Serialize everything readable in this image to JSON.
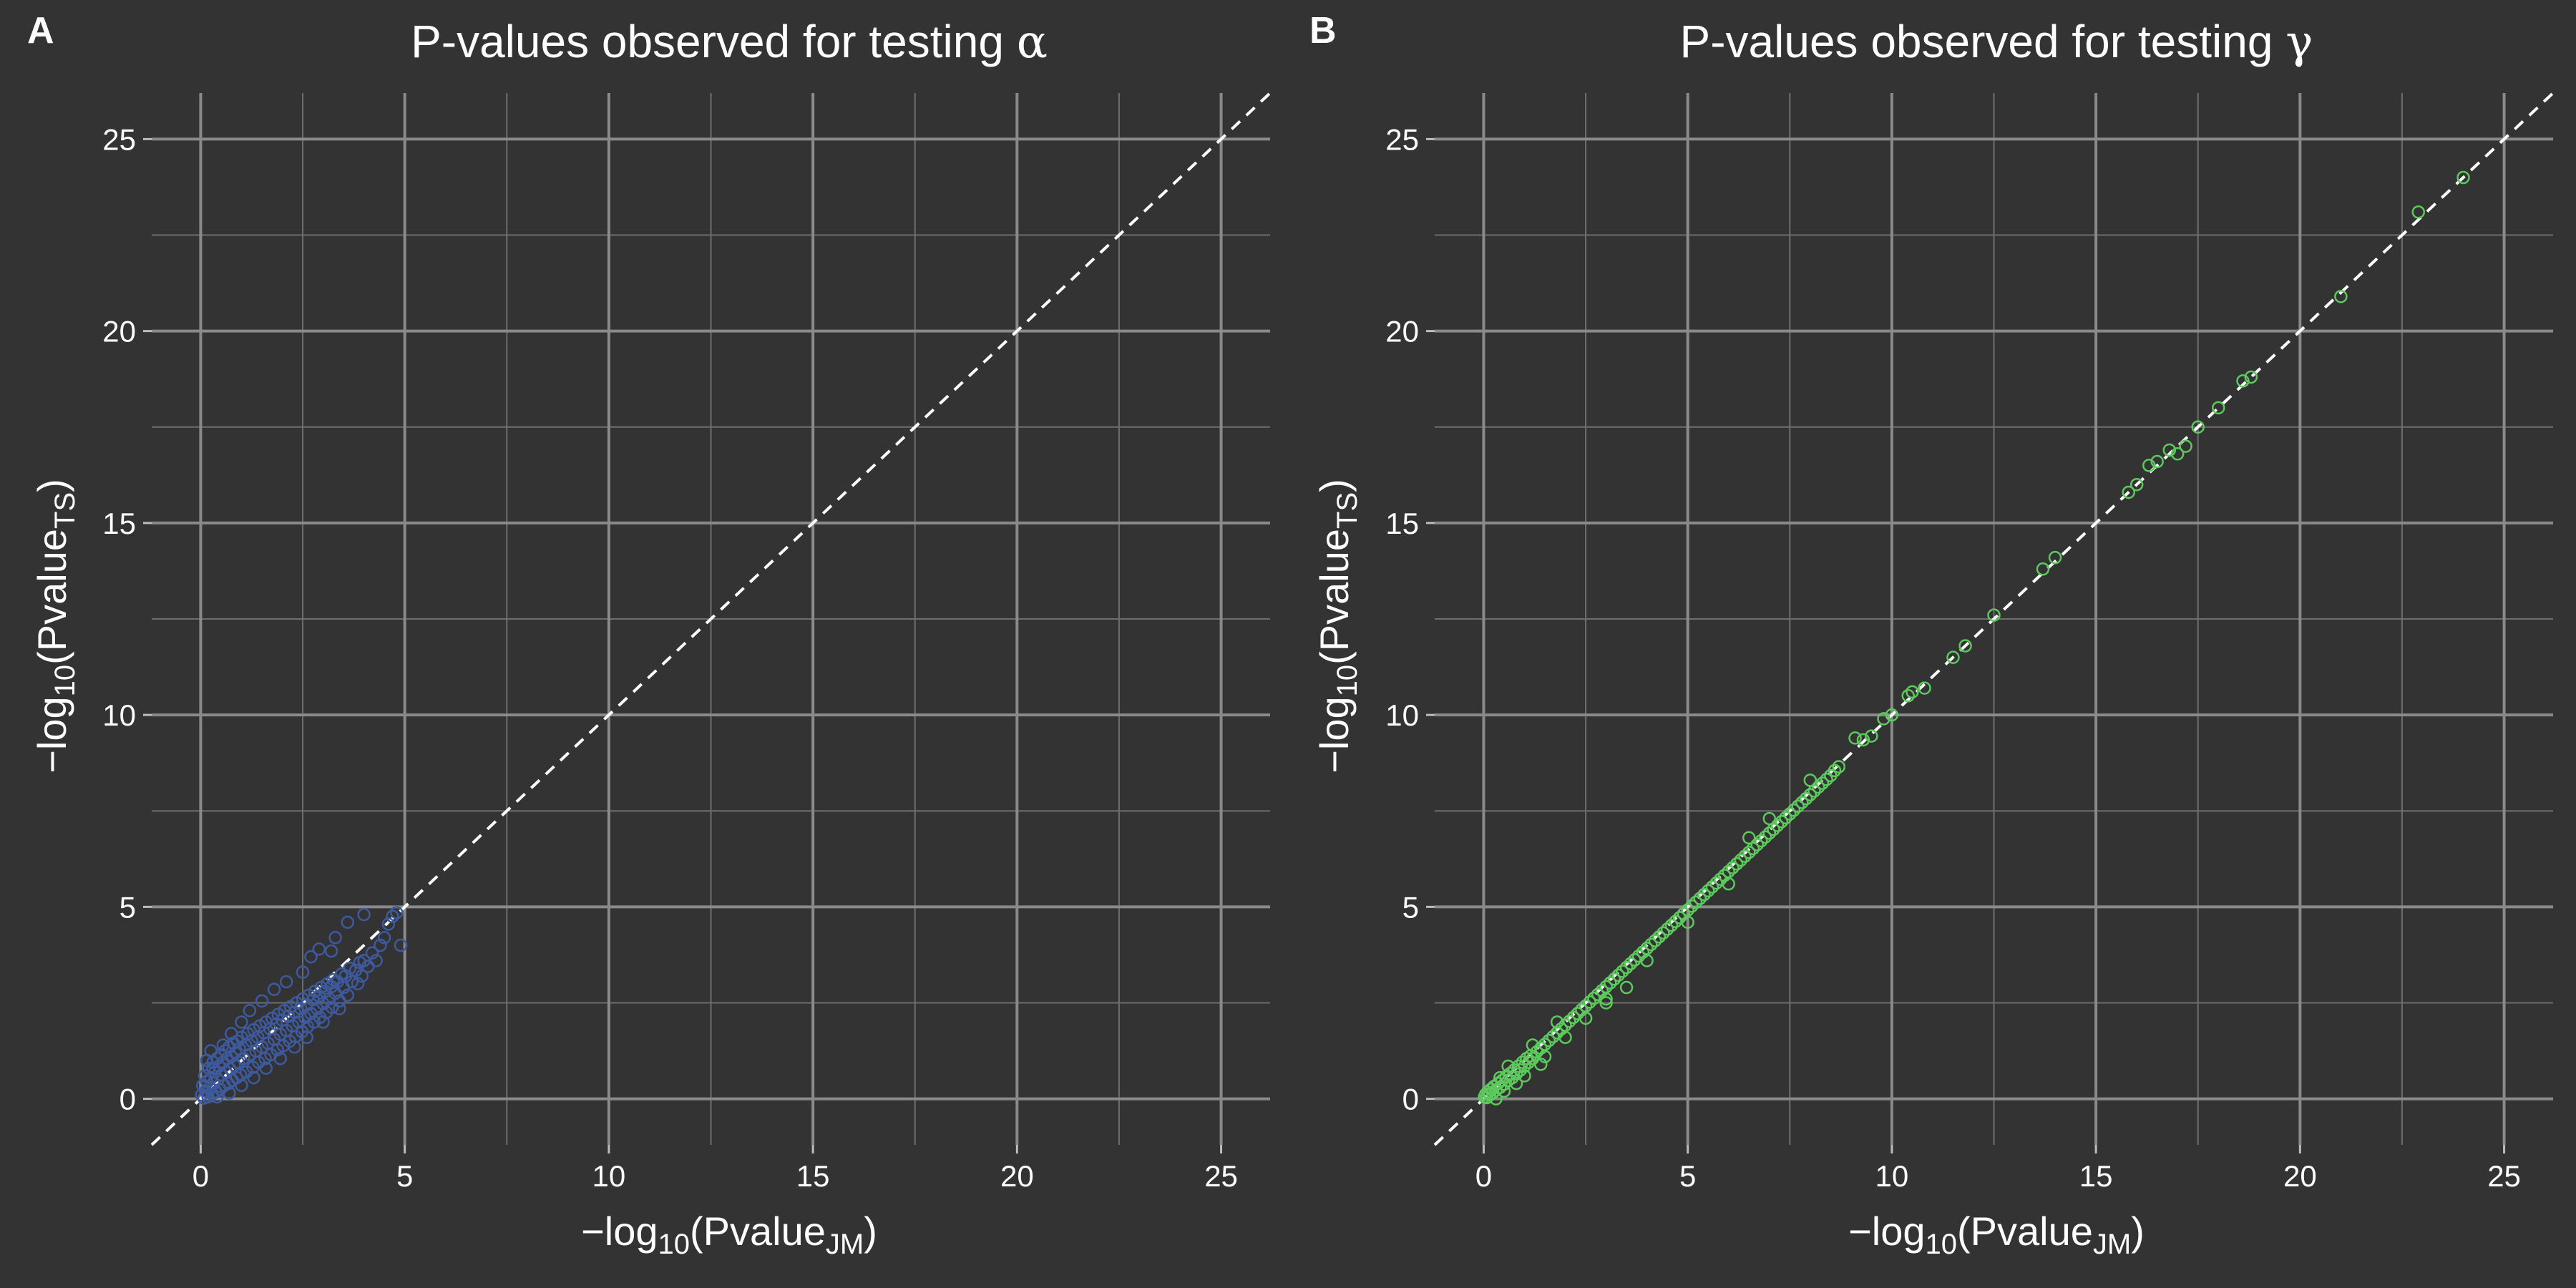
{
  "chart_data": [
    {
      "type": "scatter",
      "panel_label": "A",
      "title": "P-values observed for testing",
      "title_symbol": "α",
      "xlabel": {
        "prefix": "−log",
        "sub": "10",
        "open": "(Pvalue",
        "var_sub": "JM",
        "close": ")"
      },
      "ylabel": {
        "prefix": "−log",
        "sub": "10",
        "open": "(Pvalue",
        "var_sub": "TS",
        "close": ")"
      },
      "xlim": [
        -1.2,
        26.2
      ],
      "ylim": [
        -1.2,
        26.2
      ],
      "xticks": [
        0,
        5,
        10,
        15,
        20,
        25
      ],
      "yticks": [
        0,
        5,
        10,
        15,
        20,
        25
      ],
      "xtick_labels": [
        "0",
        "5",
        "10",
        "15",
        "20",
        "25"
      ],
      "ytick_labels": [
        "0",
        "5",
        "10",
        "15",
        "20",
        "25"
      ],
      "grid": true,
      "reference_line": "y = x (dashed)",
      "marker": "open-circle",
      "color": "#3e5a9e",
      "points": [
        [
          0.02,
          0.1
        ],
        [
          0.05,
          0.35
        ],
        [
          0.08,
          0.02
        ],
        [
          0.1,
          0.6
        ],
        [
          0.12,
          0.2
        ],
        [
          0.15,
          0.45
        ],
        [
          0.18,
          0.05
        ],
        [
          0.2,
          0.8
        ],
        [
          0.22,
          0.3
        ],
        [
          0.25,
          0.55
        ],
        [
          0.28,
          0.12
        ],
        [
          0.3,
          0.95
        ],
        [
          0.32,
          0.4
        ],
        [
          0.35,
          0.7
        ],
        [
          0.38,
          0.18
        ],
        [
          0.4,
          1.05
        ],
        [
          0.42,
          0.5
        ],
        [
          0.45,
          0.85
        ],
        [
          0.48,
          0.25
        ],
        [
          0.5,
          1.15
        ],
        [
          0.52,
          0.62
        ],
        [
          0.55,
          0.95
        ],
        [
          0.58,
          0.35
        ],
        [
          0.6,
          1.25
        ],
        [
          0.62,
          0.7
        ],
        [
          0.65,
          1.05
        ],
        [
          0.68,
          0.4
        ],
        [
          0.7,
          1.35
        ],
        [
          0.72,
          0.78
        ],
        [
          0.75,
          1.1
        ],
        [
          0.78,
          0.48
        ],
        [
          0.8,
          1.45
        ],
        [
          0.82,
          0.88
        ],
        [
          0.85,
          1.2
        ],
        [
          0.88,
          0.55
        ],
        [
          0.9,
          1.5
        ],
        [
          0.92,
          0.95
        ],
        [
          0.95,
          1.3
        ],
        [
          0.98,
          0.62
        ],
        [
          1.0,
          1.6
        ],
        [
          1.05,
          1.05
        ],
        [
          1.1,
          1.4
        ],
        [
          1.12,
          0.7
        ],
        [
          1.15,
          1.7
        ],
        [
          1.2,
          1.15
        ],
        [
          1.25,
          1.5
        ],
        [
          1.28,
          0.82
        ],
        [
          1.3,
          1.8
        ],
        [
          1.35,
          1.25
        ],
        [
          1.4,
          1.6
        ],
        [
          1.42,
          0.95
        ],
        [
          1.45,
          1.9
        ],
        [
          1.5,
          1.35
        ],
        [
          1.55,
          1.72
        ],
        [
          1.58,
          1.05
        ],
        [
          1.6,
          2.0
        ],
        [
          1.65,
          1.45
        ],
        [
          1.7,
          1.82
        ],
        [
          1.72,
          1.15
        ],
        [
          1.75,
          2.1
        ],
        [
          1.8,
          1.55
        ],
        [
          1.85,
          1.95
        ],
        [
          1.88,
          1.28
        ],
        [
          1.9,
          2.2
        ],
        [
          1.95,
          1.68
        ],
        [
          2.0,
          2.05
        ],
        [
          2.02,
          1.38
        ],
        [
          2.05,
          2.3
        ],
        [
          2.1,
          1.78
        ],
        [
          2.15,
          2.15
        ],
        [
          2.18,
          1.5
        ],
        [
          2.2,
          2.4
        ],
        [
          2.25,
          1.9
        ],
        [
          2.3,
          2.25
        ],
        [
          2.32,
          1.62
        ],
        [
          2.35,
          2.5
        ],
        [
          2.4,
          2.0
        ],
        [
          2.45,
          2.35
        ],
        [
          2.48,
          1.75
        ],
        [
          2.5,
          2.6
        ],
        [
          2.55,
          2.12
        ],
        [
          2.6,
          2.45
        ],
        [
          2.62,
          1.88
        ],
        [
          2.65,
          2.7
        ],
        [
          2.7,
          2.22
        ],
        [
          2.75,
          2.58
        ],
        [
          2.78,
          2.0
        ],
        [
          2.8,
          2.8
        ],
        [
          2.85,
          2.35
        ],
        [
          2.9,
          2.68
        ],
        [
          2.92,
          2.12
        ],
        [
          2.95,
          2.9
        ],
        [
          3.0,
          2.48
        ],
        [
          3.05,
          2.8
        ],
        [
          3.08,
          2.25
        ],
        [
          3.1,
          3.0
        ],
        [
          3.15,
          2.6
        ],
        [
          3.2,
          2.92
        ],
        [
          3.22,
          2.38
        ],
        [
          3.25,
          3.1
        ],
        [
          3.3,
          2.75
        ],
        [
          3.35,
          3.05
        ],
        [
          3.4,
          2.55
        ],
        [
          3.45,
          3.25
        ],
        [
          3.5,
          2.9
        ],
        [
          3.55,
          3.2
        ],
        [
          3.6,
          2.7
        ],
        [
          3.65,
          3.4
        ],
        [
          3.7,
          3.05
        ],
        [
          3.8,
          3.35
        ],
        [
          3.85,
          3.0
        ],
        [
          3.9,
          3.55
        ],
        [
          3.95,
          3.2
        ],
        [
          4.0,
          3.6
        ],
        [
          4.1,
          3.45
        ],
        [
          4.2,
          3.8
        ],
        [
          4.3,
          3.6
        ],
        [
          4.4,
          4.0
        ],
        [
          4.5,
          4.2
        ],
        [
          4.6,
          4.55
        ],
        [
          4.7,
          4.75
        ],
        [
          4.8,
          4.85
        ],
        [
          4.9,
          4.0
        ],
        [
          3.3,
          4.2
        ],
        [
          3.6,
          4.6
        ],
        [
          4.0,
          4.8
        ],
        [
          2.7,
          3.7
        ],
        [
          2.9,
          3.9
        ],
        [
          3.2,
          3.85
        ],
        [
          2.5,
          3.3
        ],
        [
          0.3,
          0.8
        ],
        [
          0.55,
          1.4
        ],
        [
          0.75,
          1.7
        ],
        [
          1.0,
          2.0
        ],
        [
          1.2,
          2.3
        ],
        [
          1.5,
          2.55
        ],
        [
          1.8,
          2.85
        ],
        [
          2.1,
          3.05
        ],
        [
          0.4,
          0.05
        ],
        [
          0.7,
          0.15
        ],
        [
          1.0,
          0.35
        ],
        [
          1.3,
          0.55
        ],
        [
          1.6,
          0.8
        ],
        [
          1.95,
          1.05
        ],
        [
          2.3,
          1.35
        ],
        [
          2.6,
          1.6
        ],
        [
          3.0,
          2.0
        ],
        [
          3.4,
          2.35
        ],
        [
          0.15,
          1.0
        ],
        [
          0.25,
          1.25
        ]
      ]
    },
    {
      "type": "scatter",
      "panel_label": "B",
      "title": "P-values observed for testing",
      "title_symbol": "γ",
      "xlabel": {
        "prefix": "−log",
        "sub": "10",
        "open": "(Pvalue",
        "var_sub": "JM",
        "close": ")"
      },
      "ylabel": {
        "prefix": "−log",
        "sub": "10",
        "open": "(Pvalue",
        "var_sub": "TS",
        "close": ")"
      },
      "xlim": [
        -1.2,
        26.2
      ],
      "ylim": [
        -1.2,
        26.2
      ],
      "xticks": [
        0,
        5,
        10,
        15,
        20,
        25
      ],
      "yticks": [
        0,
        5,
        10,
        15,
        20,
        25
      ],
      "xtick_labels": [
        "0",
        "5",
        "10",
        "15",
        "20",
        "25"
      ],
      "ytick_labels": [
        "0",
        "5",
        "10",
        "15",
        "20",
        "25"
      ],
      "grid": true,
      "reference_line": "y = x (dashed)",
      "marker": "open-circle",
      "color": "#5cc95c",
      "points": [
        [
          0.02,
          0.05
        ],
        [
          0.05,
          0.12
        ],
        [
          0.08,
          0.03
        ],
        [
          0.1,
          0.18
        ],
        [
          0.15,
          0.1
        ],
        [
          0.18,
          0.25
        ],
        [
          0.22,
          0.15
        ],
        [
          0.25,
          0.32
        ],
        [
          0.3,
          0.22
        ],
        [
          0.35,
          0.4
        ],
        [
          0.4,
          0.3
        ],
        [
          0.45,
          0.48
        ],
        [
          0.5,
          0.38
        ],
        [
          0.55,
          0.58
        ],
        [
          0.6,
          0.48
        ],
        [
          0.65,
          0.66
        ],
        [
          0.7,
          0.55
        ],
        [
          0.75,
          0.75
        ],
        [
          0.8,
          0.65
        ],
        [
          0.85,
          0.85
        ],
        [
          0.9,
          0.75
        ],
        [
          0.95,
          0.95
        ],
        [
          1.0,
          0.85
        ],
        [
          1.05,
          1.05
        ],
        [
          1.1,
          0.95
        ],
        [
          1.15,
          1.12
        ],
        [
          1.2,
          1.05
        ],
        [
          1.3,
          1.22
        ],
        [
          1.4,
          1.32
        ],
        [
          1.5,
          1.42
        ],
        [
          1.6,
          1.52
        ],
        [
          1.7,
          1.62
        ],
        [
          1.8,
          1.72
        ],
        [
          1.9,
          1.82
        ],
        [
          2.0,
          1.92
        ],
        [
          2.1,
          2.02
        ],
        [
          2.2,
          2.12
        ],
        [
          2.3,
          2.22
        ],
        [
          2.4,
          2.32
        ],
        [
          2.5,
          2.42
        ],
        [
          2.6,
          2.52
        ],
        [
          2.7,
          2.62
        ],
        [
          2.8,
          2.72
        ],
        [
          2.9,
          2.82
        ],
        [
          3.0,
          2.92
        ],
        [
          3.1,
          3.02
        ],
        [
          3.2,
          3.12
        ],
        [
          3.3,
          3.22
        ],
        [
          3.4,
          3.32
        ],
        [
          3.5,
          3.42
        ],
        [
          3.6,
          3.52
        ],
        [
          3.7,
          3.62
        ],
        [
          3.8,
          3.72
        ],
        [
          3.9,
          3.82
        ],
        [
          4.0,
          3.92
        ],
        [
          4.1,
          4.02
        ],
        [
          4.2,
          4.12
        ],
        [
          4.3,
          4.22
        ],
        [
          4.4,
          4.32
        ],
        [
          4.5,
          4.42
        ],
        [
          4.6,
          4.52
        ],
        [
          4.7,
          4.62
        ],
        [
          4.8,
          4.72
        ],
        [
          4.9,
          4.82
        ],
        [
          5.0,
          4.92
        ],
        [
          5.1,
          5.02
        ],
        [
          5.2,
          5.12
        ],
        [
          5.3,
          5.22
        ],
        [
          5.4,
          5.32
        ],
        [
          5.5,
          5.42
        ],
        [
          5.6,
          5.52
        ],
        [
          5.7,
          5.62
        ],
        [
          5.8,
          5.72
        ],
        [
          5.9,
          5.82
        ],
        [
          6.0,
          5.92
        ],
        [
          6.1,
          6.02
        ],
        [
          6.2,
          6.12
        ],
        [
          6.3,
          6.22
        ],
        [
          6.4,
          6.32
        ],
        [
          6.5,
          6.42
        ],
        [
          6.6,
          6.52
        ],
        [
          6.7,
          6.62
        ],
        [
          6.8,
          6.72
        ],
        [
          6.9,
          6.82
        ],
        [
          7.0,
          6.92
        ],
        [
          7.1,
          7.02
        ],
        [
          7.2,
          7.12
        ],
        [
          7.3,
          7.22
        ],
        [
          7.4,
          7.32
        ],
        [
          7.5,
          7.42
        ],
        [
          7.6,
          7.52
        ],
        [
          7.7,
          7.62
        ],
        [
          7.8,
          7.72
        ],
        [
          7.9,
          7.82
        ],
        [
          8.0,
          7.92
        ],
        [
          8.1,
          8.02
        ],
        [
          8.2,
          8.12
        ],
        [
          8.3,
          8.22
        ],
        [
          8.4,
          8.32
        ],
        [
          8.5,
          8.42
        ],
        [
          8.6,
          8.55
        ],
        [
          8.7,
          8.65
        ],
        [
          0.3,
          0.0
        ],
        [
          0.5,
          0.2
        ],
        [
          0.8,
          0.4
        ],
        [
          1.0,
          0.6
        ],
        [
          1.5,
          1.1
        ],
        [
          1.4,
          0.9
        ],
        [
          2.0,
          1.6
        ],
        [
          2.5,
          2.1
        ],
        [
          3.0,
          2.6
        ],
        [
          3.5,
          2.9
        ],
        [
          3.0,
          2.5
        ],
        [
          4.0,
          3.6
        ],
        [
          5.0,
          4.6
        ],
        [
          6.0,
          5.6
        ],
        [
          6.5,
          6.8
        ],
        [
          7.0,
          7.3
        ],
        [
          8.0,
          8.3
        ],
        [
          0.4,
          0.55
        ],
        [
          0.6,
          0.85
        ],
        [
          1.2,
          1.4
        ],
        [
          1.8,
          2.0
        ],
        [
          9.1,
          9.4
        ],
        [
          9.3,
          9.35
        ],
        [
          9.5,
          9.45
        ],
        [
          10.0,
          10.0
        ],
        [
          10.4,
          10.5
        ],
        [
          10.5,
          10.6
        ],
        [
          11.5,
          11.5
        ],
        [
          11.8,
          11.8
        ],
        [
          12.5,
          12.6
        ],
        [
          13.7,
          13.8
        ],
        [
          14.0,
          14.1
        ],
        [
          15.8,
          15.8
        ],
        [
          16.0,
          16.0
        ],
        [
          16.3,
          16.5
        ],
        [
          16.5,
          16.6
        ],
        [
          16.8,
          16.9
        ],
        [
          17.0,
          16.8
        ],
        [
          17.2,
          17.0
        ],
        [
          17.5,
          17.5
        ],
        [
          18.0,
          18.0
        ],
        [
          18.6,
          18.7
        ],
        [
          18.8,
          18.8
        ],
        [
          21.0,
          20.9
        ],
        [
          22.9,
          23.1
        ],
        [
          24.0,
          24.0
        ],
        [
          9.8,
          9.9
        ],
        [
          10.8,
          10.7
        ]
      ]
    }
  ]
}
